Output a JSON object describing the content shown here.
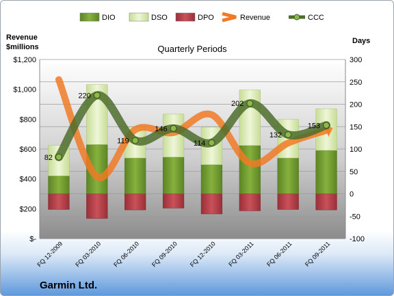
{
  "chart_data": {
    "type": "bar",
    "title": "Quarterly Periods",
    "company": "Garmin Ltd.",
    "left_axis_label_line1": "Revenue",
    "left_axis_label_line2": "$millions",
    "right_axis_label": "Days",
    "categories": [
      "FQ 12-2009",
      "FQ 03-2010",
      "FQ 06-2010",
      "FQ 09-2010",
      "FQ 12-2010",
      "FQ 03-2011",
      "FQ 06-2011",
      "FQ 09-2011"
    ],
    "left_ylim": [
      0,
      1200
    ],
    "left_ticks": [
      "$-",
      "$200",
      "$400",
      "$600",
      "$800",
      "$1,000",
      "$1,200"
    ],
    "left_tick_values": [
      0,
      200,
      400,
      600,
      800,
      1000,
      1200
    ],
    "right_ylim": [
      -100,
      300
    ],
    "right_ticks": [
      "-100",
      "-50",
      "0",
      "50",
      "100",
      "150",
      "200",
      "250",
      "300"
    ],
    "right_tick_values": [
      -100,
      -50,
      0,
      50,
      100,
      150,
      200,
      250,
      300
    ],
    "legend_position": "top",
    "series": [
      {
        "name": "DIO",
        "axis": "right",
        "kind": "stacked-bar",
        "color": "#6f9a2e",
        "values": [
          40,
          110,
          80,
          82,
          65,
          108,
          80,
          97
        ]
      },
      {
        "name": "DSO",
        "axis": "right",
        "kind": "stacked-bar",
        "color": "#dcebb8",
        "values": [
          68,
          134,
          69,
          96,
          84,
          124,
          86,
          93
        ]
      },
      {
        "name": "DPO",
        "axis": "right",
        "kind": "negative-bar",
        "color": "#b8404a",
        "values": [
          -35,
          -55,
          -36,
          -32,
          -45,
          -38,
          -35,
          -36
        ]
      },
      {
        "name": "Revenue",
        "axis": "left",
        "kind": "smooth-line",
        "color": "#f07a24",
        "values": [
          1065,
          415,
          730,
          710,
          830,
          505,
          640,
          725
        ]
      },
      {
        "name": "CCC",
        "axis": "right",
        "kind": "smooth-line-markers",
        "color": "#4e6d2b",
        "values": [
          82,
          220,
          119,
          146,
          114,
          202,
          132,
          153
        ]
      }
    ],
    "data_labels": [
      "82",
      "220",
      "119",
      "146",
      "114",
      "202",
      "132",
      "153"
    ]
  }
}
